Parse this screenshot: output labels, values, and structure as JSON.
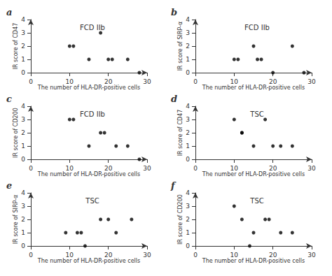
{
  "chart_data": [
    {
      "type": "scatter",
      "title": "FCD IIb",
      "annotations": [
        "a"
      ],
      "xlabel": "The number of HLA-DR-positive cells",
      "ylabel": "IR score of CD47",
      "x": [
        10,
        11,
        15,
        18,
        20,
        21,
        25,
        28
      ],
      "values": [
        2,
        2,
        1,
        3,
        1,
        1,
        1,
        0
      ],
      "color": "#000000",
      "xlim": [
        0,
        30
      ],
      "ylim": [
        0,
        4
      ],
      "xticks": [
        0,
        10,
        20,
        30
      ],
      "yticks": [
        0,
        1,
        2,
        3,
        4
      ],
      "grid": false
    },
    {
      "type": "scatter",
      "title": "FCD IIb",
      "annotations": [
        "b"
      ],
      "xlabel": "The number of HLA-DR-positive cells",
      "ylabel": "IR score of SIRP-α",
      "x": [
        10,
        11,
        15,
        16,
        17,
        20,
        25,
        28
      ],
      "values": [
        1,
        1,
        2,
        1,
        1,
        0,
        2,
        0
      ],
      "color": "#000000",
      "xlim": [
        0,
        30
      ],
      "ylim": [
        0,
        4
      ],
      "xticks": [
        0,
        10,
        20,
        30
      ],
      "yticks": [
        0,
        1,
        2,
        3,
        4
      ],
      "grid": false
    },
    {
      "type": "scatter",
      "title": "FCD IIb",
      "annotations": [
        "c"
      ],
      "xlabel": "The number of HLA-DR-positive cells",
      "ylabel": "IR score of CD200",
      "x": [
        10,
        11,
        15,
        18,
        19,
        22,
        25,
        28
      ],
      "values": [
        3,
        3,
        1,
        2,
        2,
        1,
        1,
        0
      ],
      "color": "#000000",
      "xlim": [
        0,
        30
      ],
      "ylim": [
        0,
        4
      ],
      "xticks": [
        0,
        10,
        20,
        30
      ],
      "yticks": [
        0,
        1,
        2,
        3,
        4
      ],
      "grid": false
    },
    {
      "type": "scatter",
      "title": "TSC",
      "annotations": [
        "d"
      ],
      "xlabel": "The number of HLA-DR-positive cells",
      "ylabel": "IR score of CD47",
      "x": [
        10,
        12,
        12,
        15,
        18,
        20,
        22,
        25
      ],
      "values": [
        3,
        2,
        2,
        1,
        3,
        1,
        1,
        1
      ],
      "color": "#000000",
      "xlim": [
        0,
        30
      ],
      "ylim": [
        0,
        4
      ],
      "xticks": [
        0,
        10,
        20,
        30
      ],
      "yticks": [
        0,
        1,
        2,
        3,
        4
      ],
      "grid": false
    },
    {
      "type": "scatter",
      "title": "TSC",
      "annotations": [
        "e"
      ],
      "xlabel": "The number of HLA-DR-positive cells",
      "ylabel": "IR score of SIRP-α",
      "x": [
        9,
        12,
        13,
        14,
        18,
        20,
        22,
        26
      ],
      "values": [
        1,
        1,
        1,
        0,
        2,
        2,
        1,
        2
      ],
      "color": "#000000",
      "xlim": [
        0,
        30
      ],
      "ylim": [
        0,
        4
      ],
      "xticks": [
        0,
        10,
        20,
        30
      ],
      "yticks": [
        0,
        1,
        2,
        3,
        4
      ],
      "grid": false
    },
    {
      "type": "scatter",
      "title": "TSC",
      "annotations": [
        "f"
      ],
      "xlabel": "The number of HLA-DR-positive cells",
      "ylabel": "IR score of CD200",
      "x": [
        10,
        12,
        14,
        15,
        18,
        19,
        22,
        25
      ],
      "values": [
        3,
        2,
        0,
        1,
        2,
        2,
        1,
        1
      ],
      "color": "#000000",
      "xlim": [
        0,
        30
      ],
      "ylim": [
        0,
        4
      ],
      "xticks": [
        0,
        10,
        20,
        30
      ],
      "yticks": [
        0,
        1,
        2,
        3,
        4
      ],
      "grid": false
    }
  ]
}
